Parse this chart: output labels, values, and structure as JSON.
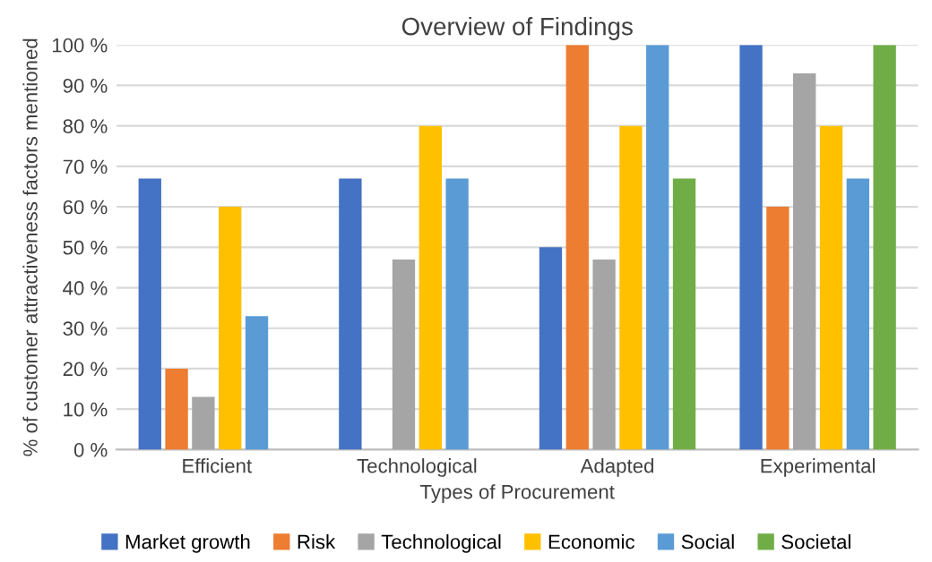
{
  "chart_data": {
    "type": "bar",
    "title": "Overview of Findings",
    "xlabel": "Types of Procurement",
    "ylabel": "% of customer attractiveness factors mentioned",
    "categories": [
      "Efficient",
      "Technological",
      "Adapted",
      "Experimental"
    ],
    "series": [
      {
        "name": "Market growth",
        "color": "#4472c4",
        "values": [
          67,
          67,
          50,
          100
        ]
      },
      {
        "name": "Risk",
        "color": "#ed7d31",
        "values": [
          20,
          0,
          100,
          60
        ]
      },
      {
        "name": "Technological",
        "color": "#a5a5a5",
        "values": [
          13,
          47,
          47,
          93
        ]
      },
      {
        "name": "Economic",
        "color": "#ffc000",
        "values": [
          60,
          80,
          80,
          80
        ]
      },
      {
        "name": "Social",
        "color": "#5b9bd5",
        "values": [
          33,
          67,
          100,
          67
        ]
      },
      {
        "name": "Societal",
        "color": "#70ad47",
        "values": [
          0,
          0,
          67,
          100
        ]
      }
    ],
    "ylim": [
      0,
      100
    ],
    "yticks": [
      {
        "value": 0,
        "label": "0 %"
      },
      {
        "value": 10,
        "label": "10 %"
      },
      {
        "value": 20,
        "label": "20 %"
      },
      {
        "value": 30,
        "label": "30 %"
      },
      {
        "value": 40,
        "label": "40 %"
      },
      {
        "value": 50,
        "label": "50 %"
      },
      {
        "value": 60,
        "label": "60 %"
      },
      {
        "value": 70,
        "label": "70 %"
      },
      {
        "value": 80,
        "label": "80 %"
      },
      {
        "value": 90,
        "label": "90 %"
      },
      {
        "value": 100,
        "label": "100 %"
      }
    ],
    "grid": "y",
    "legend": "bottom"
  }
}
